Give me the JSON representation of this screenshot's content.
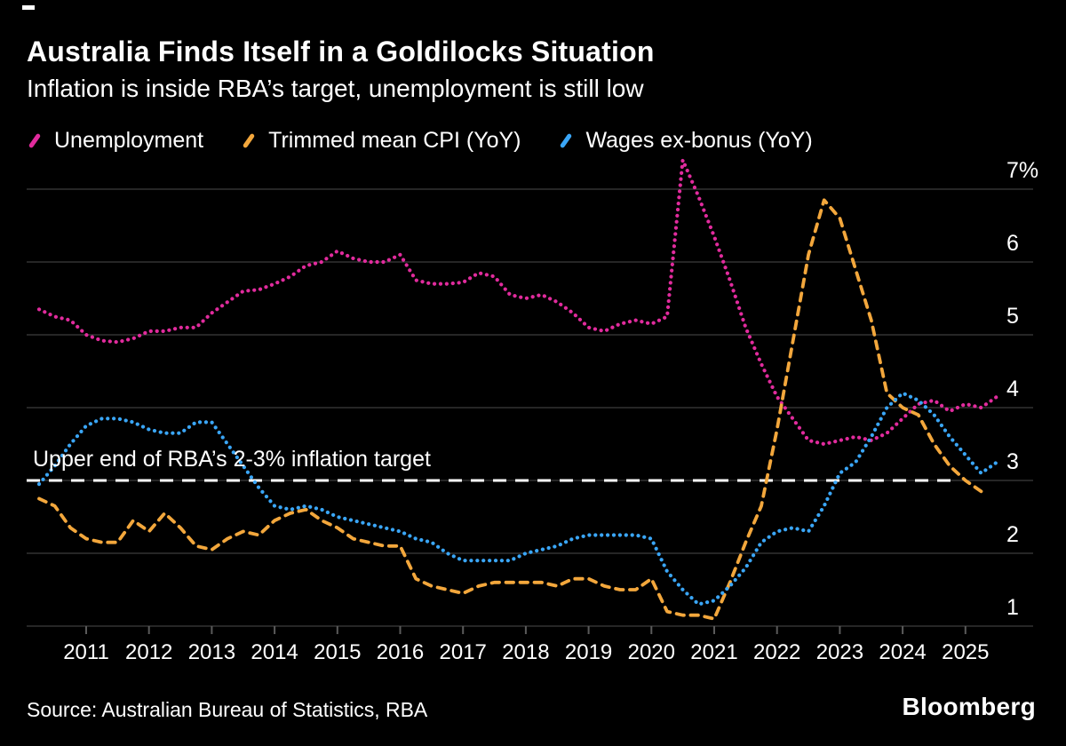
{
  "footer": {
    "source": "Source: Australian Bureau of Statistics, RBA",
    "brand": "Bloomberg"
  },
  "chart_data": {
    "type": "line",
    "title": "Australia Finds Itself in a Goldilocks Situation",
    "subtitle": "Inflation is inside RBA’s target, unemployment is still low",
    "legend_position": "top",
    "grid": true,
    "grid_color": "#4d4d4d",
    "axis_label_color": "#ffffff",
    "xlim": [
      2010.2,
      2025.6
    ],
    "ylim": [
      0.75,
      7.6
    ],
    "y_ticks": [
      {
        "value": 7,
        "label": "7%"
      },
      {
        "value": 6,
        "label": "6"
      },
      {
        "value": 5,
        "label": "5"
      },
      {
        "value": 4,
        "label": "4"
      },
      {
        "value": 3,
        "label": "3"
      },
      {
        "value": 2,
        "label": "2"
      },
      {
        "value": 1,
        "label": "1"
      }
    ],
    "x_ticks": [
      2011,
      2012,
      2013,
      2014,
      2015,
      2016,
      2017,
      2018,
      2019,
      2020,
      2021,
      2022,
      2023,
      2024,
      2025
    ],
    "target_line": {
      "value": 3,
      "label": "Upper end of RBA’s 2-3% inflation target",
      "color": "#ffffff",
      "style": "dashed"
    },
    "series": [
      {
        "name": "Unemployment",
        "color": "#e12b9d",
        "style": "dotted",
        "x_start": 2010.25,
        "x_step": 0.25,
        "values": [
          5.35,
          5.25,
          5.2,
          5.0,
          4.92,
          4.9,
          4.95,
          5.05,
          5.05,
          5.1,
          5.1,
          5.3,
          5.45,
          5.6,
          5.62,
          5.7,
          5.8,
          5.95,
          6.0,
          6.15,
          6.05,
          6.0,
          6.0,
          6.1,
          5.75,
          5.7,
          5.7,
          5.72,
          5.85,
          5.8,
          5.55,
          5.5,
          5.55,
          5.45,
          5.3,
          5.1,
          5.05,
          5.15,
          5.2,
          5.15,
          5.25,
          7.4,
          6.9,
          6.35,
          5.75,
          5.1,
          4.6,
          4.15,
          3.85,
          3.55,
          3.5,
          3.55,
          3.6,
          3.55,
          3.65,
          3.85,
          4.05,
          4.1,
          3.95,
          4.05,
          4.0,
          4.15
        ]
      },
      {
        "name": "Trimmed mean CPI (YoY)",
        "color": "#f3a73c",
        "style": "dashed",
        "x_start": 2010.25,
        "x_step": 0.25,
        "values": [
          2.75,
          2.65,
          2.35,
          2.2,
          2.15,
          2.15,
          2.45,
          2.3,
          2.55,
          2.35,
          2.1,
          2.05,
          2.2,
          2.3,
          2.25,
          2.45,
          2.55,
          2.6,
          2.45,
          2.35,
          2.2,
          2.15,
          2.1,
          2.1,
          1.65,
          1.55,
          1.5,
          1.45,
          1.55,
          1.6,
          1.6,
          1.6,
          1.6,
          1.55,
          1.65,
          1.65,
          1.55,
          1.5,
          1.5,
          1.65,
          1.2,
          1.15,
          1.15,
          1.1,
          1.6,
          2.15,
          2.65,
          3.7,
          4.9,
          6.1,
          6.85,
          6.6,
          5.9,
          5.2,
          4.2,
          4.0,
          3.9,
          3.5,
          3.2,
          3.0,
          2.85
        ]
      },
      {
        "name": "Wages ex-bonus (YoY)",
        "color": "#3aa6f7",
        "style": "dotted",
        "x_start": 2010.25,
        "x_step": 0.25,
        "values": [
          2.95,
          3.2,
          3.5,
          3.75,
          3.85,
          3.85,
          3.8,
          3.7,
          3.65,
          3.65,
          3.8,
          3.8,
          3.5,
          3.2,
          2.9,
          2.65,
          2.6,
          2.65,
          2.6,
          2.5,
          2.45,
          2.4,
          2.35,
          2.3,
          2.2,
          2.15,
          2.0,
          1.9,
          1.9,
          1.9,
          1.9,
          2.0,
          2.05,
          2.1,
          2.2,
          2.25,
          2.25,
          2.25,
          2.25,
          2.2,
          1.75,
          1.5,
          1.3,
          1.35,
          1.55,
          1.8,
          2.15,
          2.3,
          2.35,
          2.3,
          2.65,
          3.1,
          3.25,
          3.6,
          4.0,
          4.2,
          4.1,
          3.9,
          3.6,
          3.35,
          3.1,
          3.25
        ]
      }
    ]
  }
}
